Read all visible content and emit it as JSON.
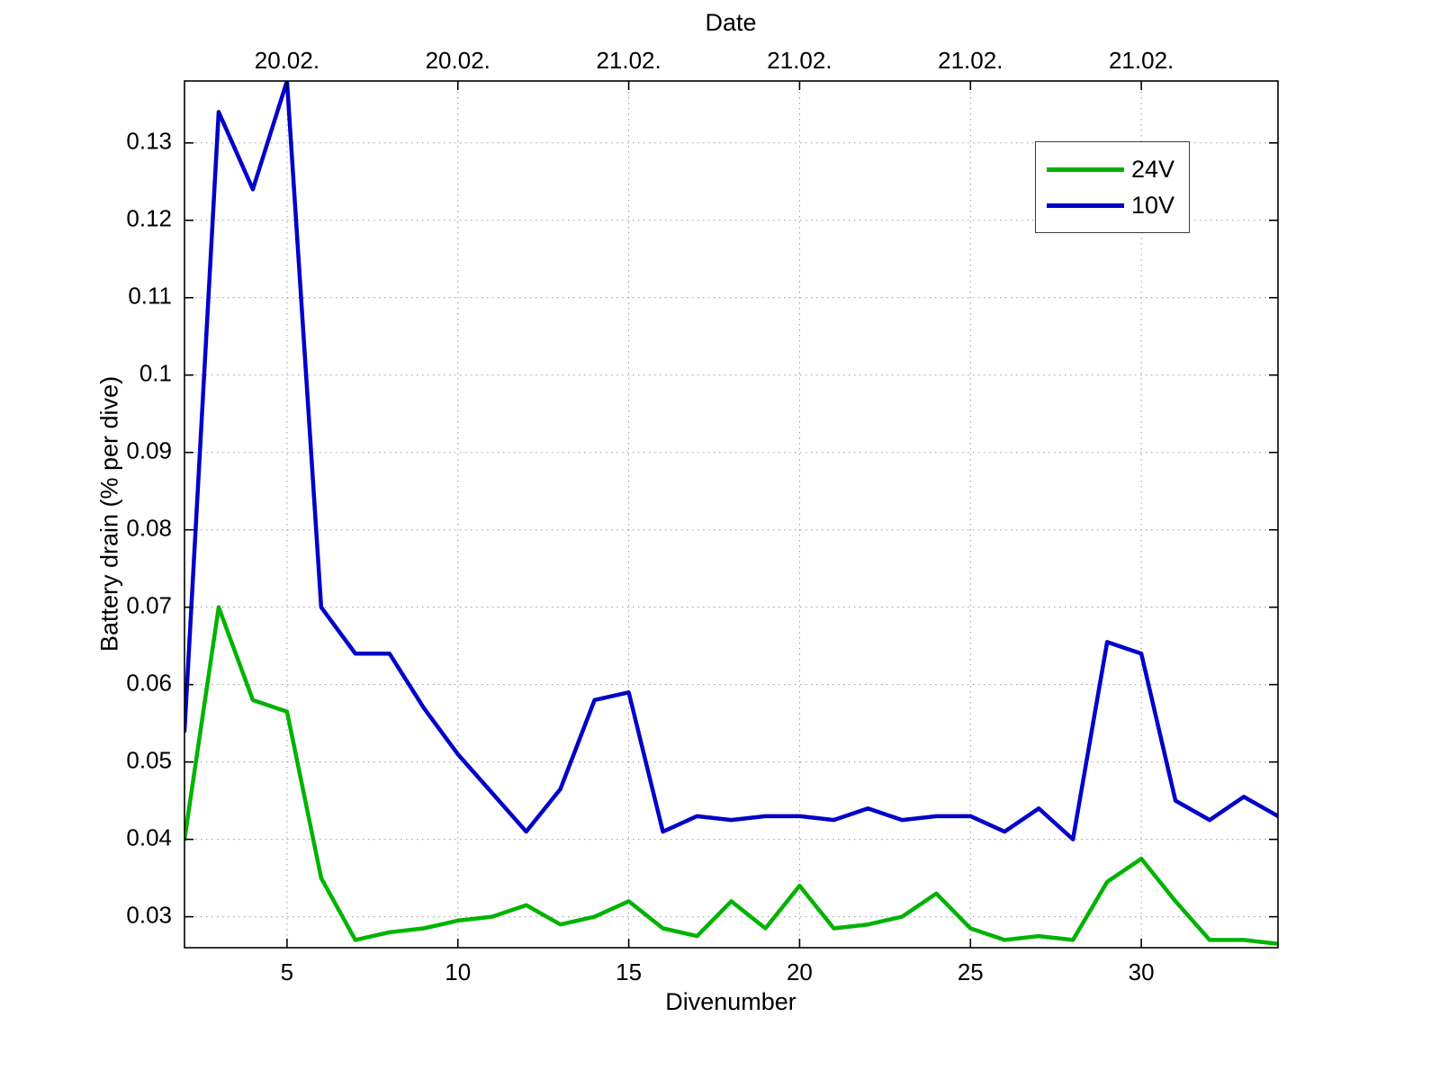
{
  "chart_data": {
    "type": "line",
    "top_axis_title": "Date",
    "xlabel": "Divenumber",
    "ylabel": "Battery drain (% per dive)",
    "xlim": [
      2,
      34
    ],
    "ylim": [
      0.026,
      0.138
    ],
    "grid": true,
    "legend_position": "top-right",
    "xticks": [
      5,
      10,
      15,
      20,
      25,
      30
    ],
    "xtick_labels": [
      "5",
      "10",
      "15",
      "20",
      "25",
      "30"
    ],
    "yticks": [
      0.03,
      0.04,
      0.05,
      0.06,
      0.07,
      0.08,
      0.09,
      0.1,
      0.11,
      0.12,
      0.13
    ],
    "ytick_labels": [
      "0.03",
      "0.04",
      "0.05",
      "0.06",
      "0.07",
      "0.08",
      "0.09",
      "0.1",
      "0.11",
      "0.12",
      "0.13"
    ],
    "top_ticks": [
      5,
      10,
      15,
      20,
      25,
      30
    ],
    "top_tick_labels": [
      "20.02.",
      "20.02.",
      "21.02.",
      "21.02.",
      "21.02.",
      "21.02."
    ],
    "x": [
      2,
      3,
      4,
      5,
      6,
      7,
      8,
      9,
      10,
      11,
      12,
      13,
      14,
      15,
      16,
      17,
      18,
      19,
      20,
      21,
      22,
      23,
      24,
      25,
      26,
      27,
      28,
      29,
      30,
      31,
      32,
      33,
      34
    ],
    "series": [
      {
        "name": "24V",
        "color": "#00b300",
        "values": [
          0.04,
          0.07,
          0.058,
          0.0565,
          0.035,
          0.027,
          0.028,
          0.0285,
          0.0295,
          0.03,
          0.0315,
          0.029,
          0.03,
          0.032,
          0.0285,
          0.0275,
          0.032,
          0.0285,
          0.034,
          0.0285,
          0.029,
          0.03,
          0.033,
          0.0285,
          0.027,
          0.0275,
          0.027,
          0.0345,
          0.0375,
          0.032,
          0.027,
          0.027,
          0.0265
        ]
      },
      {
        "name": "10V",
        "color": "#0000c8",
        "values": [
          0.054,
          0.134,
          0.124,
          0.138,
          0.07,
          0.064,
          0.064,
          0.057,
          0.051,
          0.046,
          0.041,
          0.0465,
          0.058,
          0.059,
          0.041,
          0.043,
          0.0425,
          0.043,
          0.043,
          0.0425,
          0.044,
          0.0425,
          0.043,
          0.043,
          0.041,
          0.044,
          0.04,
          0.0655,
          0.064,
          0.045,
          0.0425,
          0.0455,
          0.043
        ]
      }
    ],
    "style": {
      "grid_color": "#999999",
      "axis_color": "#000000",
      "line_width": 4.5,
      "tick_font_size": 26
    }
  }
}
